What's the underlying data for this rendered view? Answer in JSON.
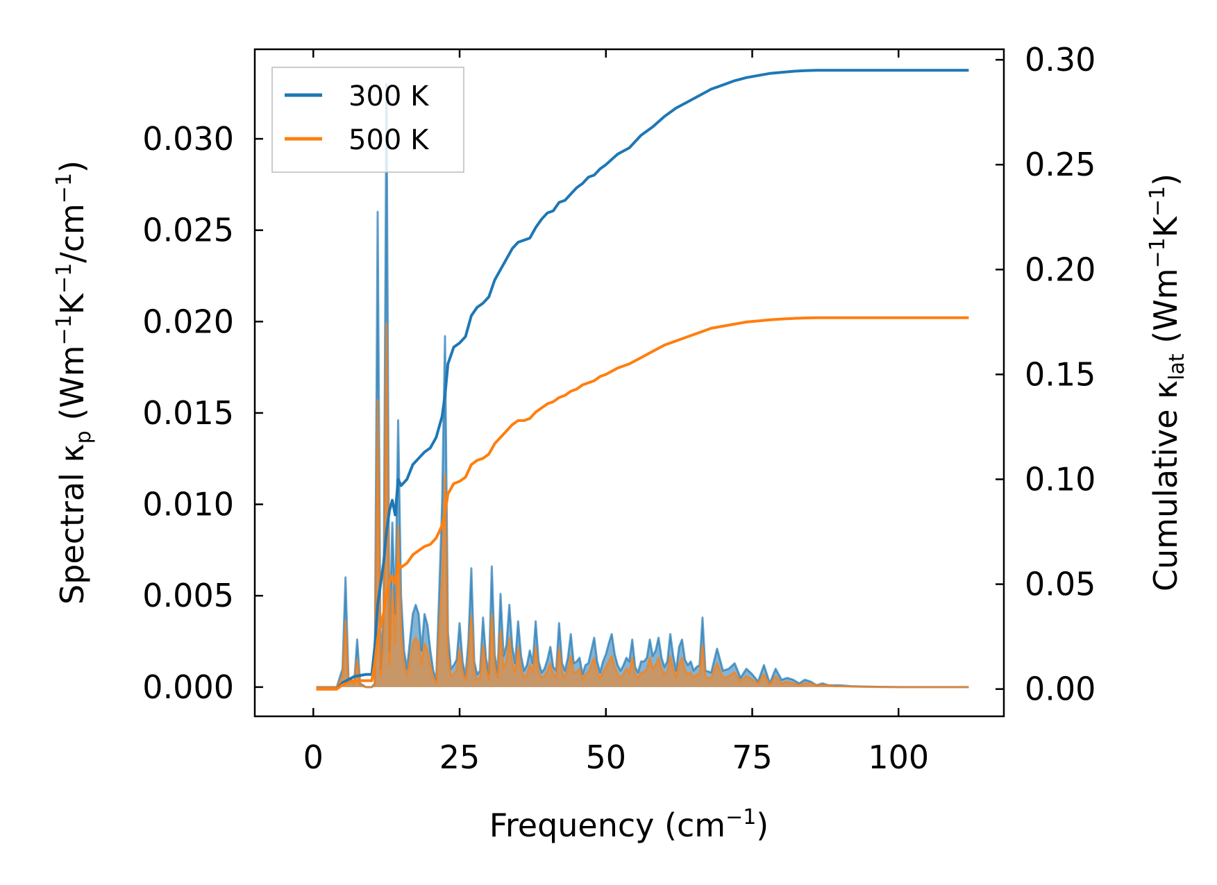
{
  "chart_data": {
    "type": "line",
    "xlabel": "Frequency (cm⁻¹)",
    "xlabel_parts": {
      "main": "Frequency (cm",
      "sup": "−1",
      "tail": ")"
    },
    "ylabel_left": "Spectral κp (Wm⁻¹K⁻¹/cm⁻¹)",
    "ylabel_left_parts": {
      "a": "Spectral κ",
      "sub": "p",
      "b": " (Wm",
      "sup1": "−1",
      "c": "K",
      "sup2": "−1",
      "d": "/cm",
      "sup3": "−1",
      "e": ")"
    },
    "ylabel_right": "Cumulative κlat (Wm⁻¹K⁻¹)",
    "ylabel_right_parts": {
      "a": "Cumulative κ",
      "sub": "lat",
      "b": " (Wm",
      "sup1": "−1",
      "c": "K",
      "sup2": "−1",
      "d": ")"
    },
    "xlim": [
      -10,
      118
    ],
    "ylim_left": [
      -0.0016,
      0.0349
    ],
    "ylim_right": [
      -0.013,
      0.305
    ],
    "x_ticks": [
      0,
      25,
      50,
      75,
      100
    ],
    "x_tick_labels": [
      "0",
      "25",
      "50",
      "75",
      "100"
    ],
    "y_left_ticks": [
      0,
      0.005,
      0.01,
      0.015,
      0.02,
      0.025,
      0.03
    ],
    "y_left_tick_labels": [
      "0.000",
      "0.005",
      "0.010",
      "0.015",
      "0.020",
      "0.025",
      "0.030"
    ],
    "y_right_ticks": [
      0,
      0.05,
      0.1,
      0.15,
      0.2,
      0.25,
      0.3
    ],
    "y_right_tick_labels": [
      "0.00",
      "0.05",
      "0.10",
      "0.15",
      "0.20",
      "0.25",
      "0.30"
    ],
    "legend": {
      "placement": "top-left",
      "entries": [
        {
          "label": "300 K",
          "color": "#1f77b4"
        },
        {
          "label": "500 K",
          "color": "#ff7f0e"
        }
      ]
    },
    "spectral_x": [
      0.5,
      4,
      5,
      5.5,
      6,
      7,
      7.5,
      8,
      9,
      10,
      10.5,
      11,
      11.5,
      12,
      12.5,
      13,
      13.5,
      14,
      14.5,
      15,
      15.5,
      16,
      16.5,
      17,
      17.5,
      18,
      18.5,
      19,
      19.5,
      20,
      20.5,
      21,
      21.5,
      22,
      22.5,
      23,
      23.5,
      24,
      24.5,
      25,
      25.5,
      26,
      26.5,
      27,
      27.5,
      28,
      28.5,
      29,
      29.5,
      30,
      30.5,
      31,
      31.5,
      32,
      32.5,
      33,
      33.5,
      34,
      34.5,
      35,
      35.5,
      36,
      36.5,
      37,
      37.5,
      38,
      38.5,
      39,
      39.5,
      40,
      40.5,
      41,
      41.5,
      42,
      42.5,
      43,
      43.5,
      44,
      44.5,
      45,
      45.5,
      46,
      46.5,
      47,
      47.5,
      48,
      48.5,
      49,
      49.5,
      50,
      50.5,
      51,
      51.5,
      52,
      52.5,
      53,
      53.5,
      54,
      54.5,
      55,
      55.5,
      56,
      56.5,
      57,
      57.5,
      58,
      58.5,
      59,
      59.5,
      60,
      60.5,
      61,
      61.5,
      62,
      62.5,
      63,
      63.5,
      64,
      64.5,
      65,
      65.5,
      66,
      66.5,
      67,
      68,
      69,
      70,
      71,
      72,
      73,
      74,
      75,
      76,
      77,
      78,
      79,
      80,
      81,
      82,
      83,
      84,
      85,
      86,
      87,
      88,
      89,
      90,
      92,
      95,
      100,
      105,
      112
    ],
    "series": [
      {
        "name": "300 K",
        "color": "#1f77b4",
        "spectral": [
          0,
          0,
          0.001,
          0.006,
          0.0005,
          0.0003,
          0.0026,
          0.0002,
          0,
          0,
          0.0002,
          0.026,
          0.001,
          0.004,
          0.033,
          0.002,
          0.009,
          0.004,
          0.0146,
          0.005,
          0.002,
          0.001,
          0.0025,
          0.004,
          0.0045,
          0.004,
          0.002,
          0.004,
          0.0034,
          0.002,
          0.0009,
          0.0004,
          0.005,
          0.01,
          0.0192,
          0.003,
          0.001,
          0.0012,
          0.0015,
          0.0035,
          0.0014,
          0.0006,
          0.0025,
          0.0065,
          0.0014,
          0.0007,
          0.0009,
          0.0038,
          0.0016,
          0.0007,
          0.0066,
          0.0018,
          0.0008,
          0.0051,
          0.0017,
          0.0023,
          0.0045,
          0.0022,
          0.0013,
          0.0036,
          0.0017,
          0.0009,
          0.0012,
          0.002,
          0.0013,
          0.0036,
          0.0014,
          0.0008,
          0.001,
          0.0015,
          0.0022,
          0.0011,
          0.0009,
          0.0035,
          0.0013,
          0.0009,
          0.0016,
          0.0029,
          0.0013,
          0.0014,
          0.0016,
          0.0007,
          0.0012,
          0.0013,
          0.002,
          0.0027,
          0.0014,
          0.0008,
          0.0014,
          0.0018,
          0.0024,
          0.0029,
          0.0018,
          0.0012,
          0.0009,
          0.0012,
          0.0016,
          0.0014,
          0.0026,
          0.0011,
          0.0008,
          0.0014,
          0.0014,
          0.0016,
          0.0026,
          0.0017,
          0.002,
          0.0027,
          0.0016,
          0.0011,
          0.0014,
          0.0029,
          0.0017,
          0.0009,
          0.0022,
          0.0026,
          0.0015,
          0.0012,
          0.0014,
          0.0009,
          0.0011,
          0.0012,
          0.0038,
          0.0009,
          0.0008,
          0.0021,
          0.0009,
          0.001,
          0.0013,
          0.0005,
          0.001,
          0.0007,
          0.0003,
          0.0012,
          0.0002,
          0.001,
          0.0004,
          0.0005,
          0.0004,
          0.0002,
          0.0004,
          0.0003,
          0.0001,
          0.0002,
          0.0001,
          0.0001,
          0.0001,
          5e-05,
          2e-05,
          0,
          0,
          0,
          0,
          0
        ],
        "cumulative_x": [
          0.5,
          4,
          5,
          7,
          9,
          10,
          10.5,
          11,
          11.5,
          12,
          12.5,
          13,
          13.5,
          14,
          14.5,
          15,
          16,
          17,
          18,
          19,
          20,
          21,
          22,
          22.5,
          23,
          24,
          25,
          26,
          27,
          28,
          29,
          30,
          31,
          32,
          33,
          34,
          35,
          36,
          37,
          38,
          39,
          40,
          41,
          42,
          43,
          44,
          45,
          46,
          47,
          48,
          49,
          50,
          52,
          54,
          56,
          58,
          60,
          62,
          64,
          66,
          68,
          70,
          72,
          74,
          76,
          78,
          80,
          82,
          84,
          86,
          88,
          90,
          95,
          100,
          105,
          112
        ],
        "cumulative": [
          0,
          0,
          0.003,
          0.006,
          0.007,
          0.007,
          0.02,
          0.04,
          0.05,
          0.06,
          0.075,
          0.085,
          0.09,
          0.083,
          0.1,
          0.097,
          0.1,
          0.107,
          0.11,
          0.113,
          0.115,
          0.12,
          0.13,
          0.14,
          0.155,
          0.163,
          0.165,
          0.168,
          0.178,
          0.182,
          0.184,
          0.187,
          0.195,
          0.2,
          0.205,
          0.21,
          0.213,
          0.214,
          0.215,
          0.22,
          0.224,
          0.227,
          0.228,
          0.232,
          0.233,
          0.236,
          0.239,
          0.241,
          0.244,
          0.245,
          0.248,
          0.25,
          0.255,
          0.258,
          0.264,
          0.268,
          0.273,
          0.277,
          0.28,
          0.283,
          0.286,
          0.288,
          0.29,
          0.2915,
          0.2925,
          0.2935,
          0.294,
          0.2945,
          0.2948,
          0.295,
          0.295,
          0.295,
          0.295,
          0.295,
          0.295,
          0.295
        ]
      },
      {
        "name": "500 K",
        "color": "#ff7f0e",
        "spectral": [
          0,
          0,
          0.0006,
          0.0036,
          0.0003,
          0.0002,
          0.0015,
          0.0001,
          0,
          0,
          0.0001,
          0.0157,
          0.0006,
          0.0024,
          0.0199,
          0.0012,
          0.0054,
          0.0024,
          0.0088,
          0.003,
          0.0012,
          0.0006,
          0.0015,
          0.0024,
          0.0027,
          0.0024,
          0.0012,
          0.0024,
          0.002,
          0.0012,
          0.0005,
          0.0002,
          0.003,
          0.006,
          0.0116,
          0.0018,
          0.0006,
          0.0007,
          0.0009,
          0.0021,
          0.0008,
          0.0004,
          0.0015,
          0.0039,
          0.0008,
          0.0004,
          0.0005,
          0.0023,
          0.001,
          0.0004,
          0.004,
          0.0011,
          0.0005,
          0.0031,
          0.001,
          0.0014,
          0.0027,
          0.0013,
          0.0008,
          0.0022,
          0.001,
          0.0005,
          0.0007,
          0.0012,
          0.0008,
          0.0022,
          0.0008,
          0.0005,
          0.0006,
          0.0009,
          0.0013,
          0.0007,
          0.0005,
          0.0021,
          0.0008,
          0.0005,
          0.001,
          0.0017,
          0.0008,
          0.0008,
          0.001,
          0.0004,
          0.0007,
          0.0008,
          0.0012,
          0.0016,
          0.0008,
          0.0005,
          0.0008,
          0.0011,
          0.0014,
          0.0017,
          0.0011,
          0.0007,
          0.0005,
          0.0007,
          0.001,
          0.0008,
          0.0016,
          0.0007,
          0.0005,
          0.0008,
          0.0008,
          0.001,
          0.0016,
          0.001,
          0.0012,
          0.0016,
          0.001,
          0.0007,
          0.0008,
          0.0017,
          0.001,
          0.0005,
          0.0013,
          0.0016,
          0.0009,
          0.0007,
          0.0008,
          0.0005,
          0.0007,
          0.0007,
          0.0023,
          0.0005,
          0.0005,
          0.0013,
          0.0005,
          0.0006,
          0.0008,
          0.0003,
          0.0006,
          0.0004,
          0.0002,
          0.0007,
          0.0001,
          0.0006,
          0.0002,
          0.0003,
          0.0002,
          0.0001,
          0.0002,
          0.0002,
          0.0001,
          0.0001,
          0.0001,
          5e-05,
          5e-05,
          3e-05,
          1e-05,
          0,
          0,
          0,
          0,
          0
        ],
        "cumulative_x": [
          0.5,
          4,
          5,
          7,
          9,
          10,
          10.5,
          11,
          11.5,
          12,
          12.5,
          13,
          13.5,
          14,
          14.5,
          15,
          16,
          17,
          18,
          19,
          20,
          21,
          22,
          22.5,
          23,
          24,
          25,
          26,
          27,
          28,
          29,
          30,
          31,
          32,
          33,
          34,
          35,
          36,
          37,
          38,
          39,
          40,
          41,
          42,
          43,
          44,
          45,
          46,
          47,
          48,
          49,
          50,
          52,
          54,
          56,
          58,
          60,
          62,
          64,
          66,
          68,
          70,
          72,
          74,
          76,
          78,
          80,
          82,
          84,
          86,
          88,
          90,
          95,
          100,
          105,
          112
        ],
        "cumulative": [
          0,
          0,
          0.002,
          0.004,
          0.004,
          0.004,
          0.012,
          0.024,
          0.03,
          0.036,
          0.045,
          0.051,
          0.054,
          0.05,
          0.06,
          0.058,
          0.06,
          0.064,
          0.066,
          0.068,
          0.069,
          0.072,
          0.078,
          0.084,
          0.093,
          0.098,
          0.099,
          0.101,
          0.107,
          0.109,
          0.11,
          0.112,
          0.117,
          0.12,
          0.123,
          0.126,
          0.128,
          0.128,
          0.129,
          0.132,
          0.134,
          0.136,
          0.137,
          0.139,
          0.14,
          0.142,
          0.143,
          0.145,
          0.146,
          0.147,
          0.149,
          0.15,
          0.153,
          0.155,
          0.158,
          0.161,
          0.164,
          0.166,
          0.168,
          0.17,
          0.172,
          0.173,
          0.174,
          0.175,
          0.1755,
          0.176,
          0.1764,
          0.1767,
          0.1769,
          0.177,
          0.177,
          0.177,
          0.177,
          0.177,
          0.177,
          0.177
        ]
      }
    ]
  }
}
